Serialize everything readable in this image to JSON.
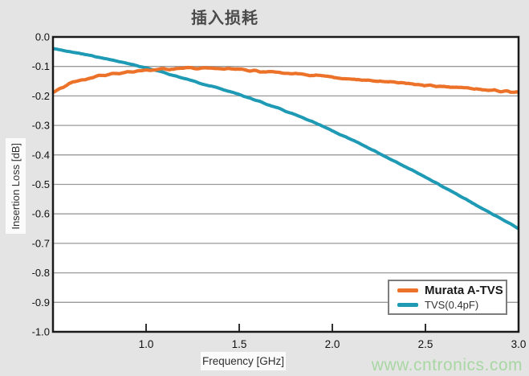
{
  "page": {
    "title": "插入损耗",
    "watermark": "www.cntronics.com"
  },
  "colors": {
    "page_background": "#e4e4e4",
    "plot_background": "#ffffff",
    "grid": "#999999",
    "plot_border": "#1a1a1a",
    "tick_text": "#111111",
    "title_text": "#4b4b4b",
    "legend_border": "#7d7d7d",
    "watermark_text": "#a8d7a3"
  },
  "chart_data": {
    "type": "line",
    "title": "插入损耗",
    "xlabel": "Frequency [GHz]",
    "ylabel": "Insertion Loss [dB]",
    "xlim": [
      0.5,
      3.0
    ],
    "ylim": [
      -1.0,
      0.0
    ],
    "grid": "horizontal-only",
    "legend_position": "bottom-right",
    "xticks": {
      "values": [
        1.0,
        1.5,
        2.0,
        2.5,
        3.0
      ],
      "labels": [
        "1.0",
        "1.5",
        "2.0",
        "2.5",
        "3.0"
      ]
    },
    "yticks": {
      "values": [
        0.0,
        -0.1,
        -0.2,
        -0.3,
        -0.4,
        -0.5,
        -0.6,
        -0.7,
        -0.8,
        -0.9,
        -1.0
      ],
      "labels": [
        "0.0",
        "-0.1",
        "-0.2",
        "-0.3",
        "-0.4",
        "-0.5",
        "-0.6",
        "-0.7",
        "-0.8",
        "-0.9",
        "-1.0"
      ]
    },
    "series": [
      {
        "name": "TVS(0.4pF)",
        "color": "#1e9ab5",
        "line_width": 4,
        "noise": 0.7,
        "x": [
          0.5,
          0.6,
          0.7,
          0.8,
          0.9,
          1.0,
          1.1,
          1.2,
          1.3,
          1.4,
          1.5,
          1.6,
          1.7,
          1.8,
          1.9,
          2.0,
          2.1,
          2.2,
          2.3,
          2.4,
          2.5,
          2.6,
          2.7,
          2.8,
          2.9,
          3.0
        ],
        "y": [
          -0.04,
          -0.051,
          -0.063,
          -0.076,
          -0.09,
          -0.105,
          -0.122,
          -0.14,
          -0.158,
          -0.176,
          -0.195,
          -0.217,
          -0.24,
          -0.264,
          -0.29,
          -0.318,
          -0.348,
          -0.378,
          -0.41,
          -0.442,
          -0.475,
          -0.51,
          -0.545,
          -0.58,
          -0.615,
          -0.65
        ]
      },
      {
        "name": "Murata A-TVS",
        "color": "#ed7229",
        "line_width": 4.2,
        "noise": 1.4,
        "x": [
          0.5,
          0.6,
          0.7,
          0.8,
          0.9,
          1.0,
          1.1,
          1.2,
          1.3,
          1.4,
          1.5,
          1.6,
          1.7,
          1.8,
          1.9,
          2.0,
          2.1,
          2.2,
          2.3,
          2.4,
          2.5,
          2.6,
          2.7,
          2.8,
          2.9,
          3.0
        ],
        "y": [
          -0.19,
          -0.155,
          -0.138,
          -0.127,
          -0.119,
          -0.113,
          -0.109,
          -0.106,
          -0.106,
          -0.108,
          -0.111,
          -0.115,
          -0.12,
          -0.126,
          -0.131,
          -0.137,
          -0.143,
          -0.148,
          -0.153,
          -0.158,
          -0.163,
          -0.168,
          -0.173,
          -0.178,
          -0.184,
          -0.19
        ]
      }
    ],
    "legend_order": [
      "Murata A-TVS",
      "TVS(0.4pF)"
    ]
  }
}
